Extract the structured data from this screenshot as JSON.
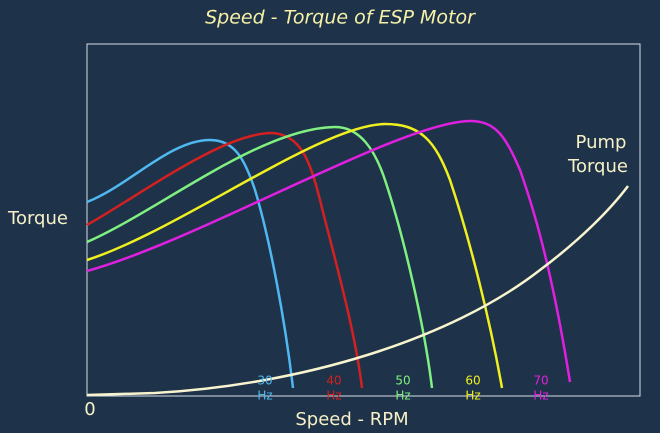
{
  "title": "Speed - Torque  of ESP  Motor",
  "y_label": "Torque",
  "x_label": "Speed - RPM",
  "origin": "0",
  "pump_label": [
    "Pump",
    "Torque"
  ],
  "curve_labels": [
    {
      "freq": "30",
      "unit": "Hz"
    },
    {
      "freq": "40",
      "unit": "Hz"
    },
    {
      "freq": "50",
      "unit": "Hz"
    },
    {
      "freq": "60",
      "unit": "Hz"
    },
    {
      "freq": "70",
      "unit": "Hz"
    }
  ]
}
